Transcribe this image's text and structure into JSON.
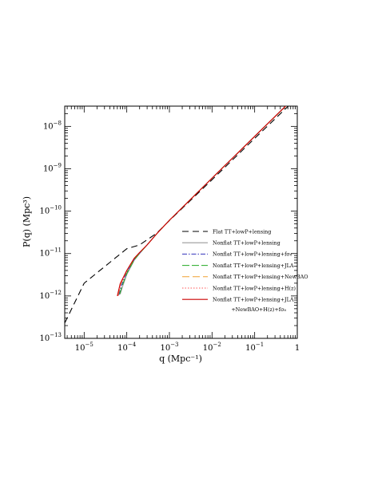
{
  "chart_data": {
    "type": "line",
    "xlabel": "q (Mpc⁻¹)",
    "ylabel": "P(q) (Mpc³)",
    "xscale": "log",
    "yscale": "log",
    "xlim": [
      3.5e-06,
      1
    ],
    "ylim": [
      1e-13,
      3e-08
    ],
    "grid": false,
    "legend_position": "bottom-right",
    "x_ticks": [
      {
        "value": 1e-05,
        "base": "10",
        "exp": "−5"
      },
      {
        "value": 0.0001,
        "base": "10",
        "exp": "−4"
      },
      {
        "value": 0.001,
        "base": "10",
        "exp": "−3"
      },
      {
        "value": 0.01,
        "base": "10",
        "exp": "−2"
      },
      {
        "value": 0.1,
        "base": "10",
        "exp": "−1"
      },
      {
        "value": 1,
        "base": "1",
        "exp": ""
      }
    ],
    "y_ticks": [
      {
        "value": 1e-13,
        "base": "10",
        "exp": "−13"
      },
      {
        "value": 1e-12,
        "base": "10",
        "exp": "−12"
      },
      {
        "value": 1e-11,
        "base": "10",
        "exp": "−11"
      },
      {
        "value": 1e-10,
        "base": "10",
        "exp": "−10"
      },
      {
        "value": 1e-09,
        "base": "10",
        "exp": "−9"
      },
      {
        "value": 1e-08,
        "base": "10",
        "exp": "−8"
      }
    ],
    "series": [
      {
        "name": "Flat TT+lowP+lensing",
        "color": "#000000",
        "dash": "8,5",
        "width": 1.1,
        "x": [
          3.5e-06,
          1e-05,
          0.0001,
          0.0002,
          0.0005,
          0.001,
          0.01,
          0.1,
          1
        ],
        "y": [
          2.3e-13,
          2e-12,
          1.3e-11,
          1.6e-11,
          3e-11,
          6e-11,
          5.5e-10,
          5.2e-09,
          4.8e-08
        ]
      },
      {
        "name": "Nonflat TT+lowP+lensing",
        "color": "#9a9a9a",
        "dash": "",
        "width": 1.1,
        "x": [
          7e-05,
          8e-05,
          0.0001,
          0.00015,
          0.0002,
          0.0003,
          0.0005,
          0.001,
          0.01,
          0.1,
          1
        ],
        "y": [
          1.1e-12,
          1.7e-12,
          3.2e-12,
          7e-12,
          1e-11,
          1.6e-11,
          2.9e-11,
          6.1e-11,
          6e-10,
          5.8e-09,
          5.5e-08
        ]
      },
      {
        "name": "Nonflat TT+lowP+lensing+fσ₈",
        "color": "#3333bb",
        "dash": "6,2,1.5,2",
        "width": 1,
        "x": [
          6.5e-05,
          7.5e-05,
          0.0001,
          0.00015,
          0.0002,
          0.0003,
          0.0005,
          0.001,
          0.01,
          0.1,
          1
        ],
        "y": [
          1.05e-12,
          1.8e-12,
          3.6e-12,
          7.4e-12,
          1.03e-11,
          1.6e-11,
          2.9e-11,
          6.1e-11,
          6e-10,
          5.8e-09,
          5.6e-08
        ]
      },
      {
        "name": "Nonflat TT+lowP+lensing+JLA",
        "color": "#22aa22",
        "dash": "9,3",
        "width": 1,
        "x": [
          6.8e-05,
          7.8e-05,
          0.0001,
          0.00015,
          0.0002,
          0.0003,
          0.0005,
          0.001,
          0.01,
          0.1,
          1
        ],
        "y": [
          1.1e-12,
          1.75e-12,
          3.4e-12,
          7.2e-12,
          1.02e-11,
          1.6e-11,
          2.9e-11,
          6.1e-11,
          6e-10,
          5.8e-09,
          5.5e-08
        ]
      },
      {
        "name": "Nonflat TT+lowP+lensing+NewBAO",
        "color": "#f0a030",
        "dash": "9,4",
        "width": 1,
        "x": [
          6.2e-05,
          7.2e-05,
          0.0001,
          0.00015,
          0.0002,
          0.0003,
          0.0005,
          0.001,
          0.01,
          0.1,
          1
        ],
        "y": [
          1e-12,
          1.9e-12,
          3.9e-12,
          7.7e-12,
          1.05e-11,
          1.6e-11,
          2.9e-11,
          6.1e-11,
          6e-10,
          5.8e-09,
          5.5e-08
        ]
      },
      {
        "name": "Nonflat TT+lowP+lensing+H(z)",
        "color": "#ff5555",
        "dash": "1.5,2",
        "width": 1,
        "x": [
          6.2e-05,
          7.2e-05,
          0.0001,
          0.00015,
          0.0002,
          0.0003,
          0.0005,
          0.001,
          0.01,
          0.1,
          1
        ],
        "y": [
          1e-12,
          1.9e-12,
          3.9e-12,
          7.7e-12,
          1.05e-11,
          1.6e-11,
          2.9e-11,
          6.1e-11,
          6e-10,
          5.8e-09,
          5.5e-08
        ]
      },
      {
        "name": "Nonflat TT+lowP+lensing+JLA +NewBAO+H(z)+fσ₈",
        "color": "#cc0000",
        "dash": "",
        "width": 1.1,
        "x": [
          6e-05,
          7e-05,
          0.0001,
          0.00015,
          0.0002,
          0.0003,
          0.0005,
          0.001,
          0.01,
          0.1,
          1
        ],
        "y": [
          1e-12,
          1.95e-12,
          4e-12,
          7.8e-12,
          1.06e-11,
          1.6e-11,
          2.9e-11,
          6.1e-11,
          6e-10,
          5.8e-09,
          5.6e-08
        ]
      }
    ],
    "legend": [
      {
        "label": "Flat TT+lowP+lensing"
      },
      {
        "label": "Nonflat TT+lowP+lensing"
      },
      {
        "label": "Nonflat TT+lowP+lensing+fσ₈"
      },
      {
        "label": "Nonflat TT+lowP+lensing+JLA"
      },
      {
        "label": "Nonflat TT+lowP+lensing+NewBAO"
      },
      {
        "label": "Nonflat TT+lowP+lensing+H(z)"
      },
      {
        "label": "Nonflat TT+lowP+lensing+JLA"
      }
    ],
    "legend_continuation": "+NewBAO+H(z)+fσ₈"
  }
}
